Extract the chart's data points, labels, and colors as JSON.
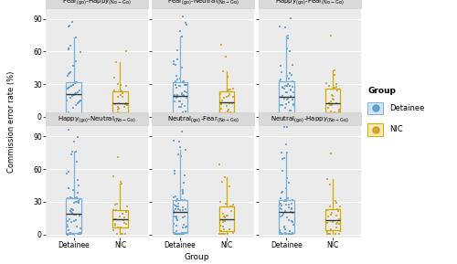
{
  "facet_titles_raw": [
    [
      "Fear",
      "go",
      "Happy",
      "No-Go"
    ],
    [
      "Fear",
      "go",
      "Neutral",
      "No-Go"
    ],
    [
      "Happy",
      "go",
      "Fear",
      "No-Go"
    ],
    [
      "Happy",
      "go",
      "Neutral",
      "No-Go"
    ],
    [
      "Neutral",
      "go",
      "Fear",
      "No-Go"
    ],
    [
      "Neutral",
      "go",
      "Happy",
      "No-Go"
    ]
  ],
  "groups": [
    "Detainee",
    "NIC"
  ],
  "detainee_color": "#5b9bd5",
  "nic_color": "#c9a227",
  "detainee_box_edge": "#7ab3d8",
  "nic_box_edge": "#d4a800",
  "ylabel": "Commission error rate (%)",
  "xlabel": "Group",
  "ylim": [
    -3,
    100
  ],
  "yticks": [
    0,
    30,
    60,
    90
  ],
  "panel_color": "#ebebeb",
  "strip_color": "#d9d9d9",
  "grid_color": "white",
  "n_detainee": 65,
  "n_nic": 30,
  "det_median": 25,
  "det_q1": 10,
  "det_q3": 33,
  "nic_median": 16,
  "nic_q1": 5,
  "nic_q3": 25,
  "legend_title": "Group",
  "legend_detainee": "Detainee",
  "legend_nic": "NIC"
}
